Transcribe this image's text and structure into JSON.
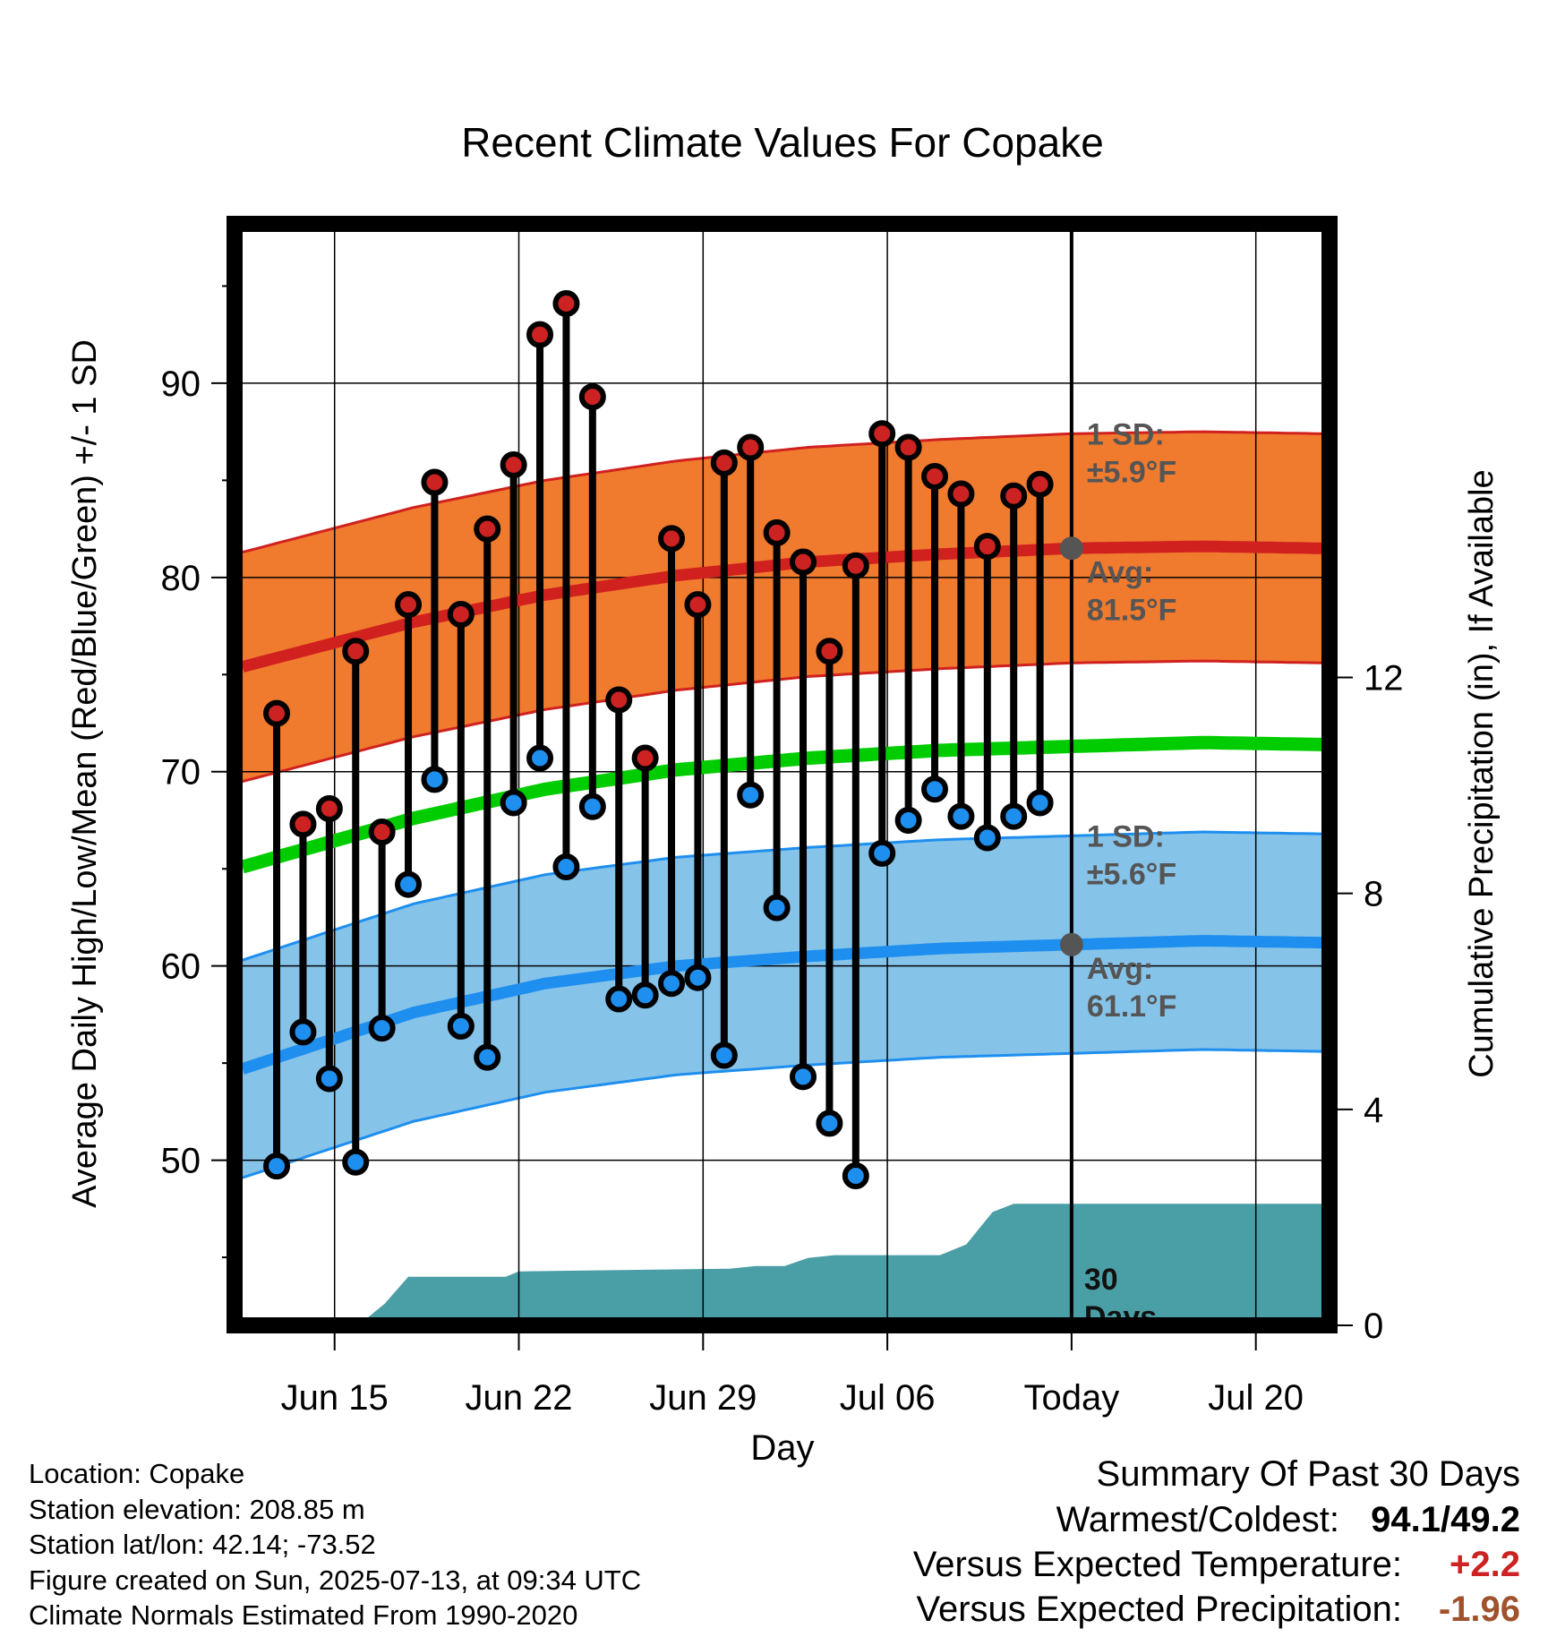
{
  "chart_data": {
    "type": "line",
    "title": "Recent Climate Values For Copake",
    "xlabel": "Day",
    "ylabel": "Average Daily High/Low/Mean (Red/Blue/Green) +/- 1 SD",
    "y2label": "Cumulative Precipitation (in), If Available",
    "ylim": [
      41.5,
      98.2
    ],
    "y_ticks": [
      50,
      60,
      70,
      80,
      90
    ],
    "y2lim": [
      0,
      20.4
    ],
    "y2_ticks": [
      0,
      4,
      8,
      12
    ],
    "xlim": [
      -1.8,
      39.8
    ],
    "x_ticks": [
      {
        "day": 2,
        "label": "Jun 15"
      },
      {
        "day": 9,
        "label": "Jun 22"
      },
      {
        "day": 16,
        "label": "Jun 29"
      },
      {
        "day": 23,
        "label": "Jul 06"
      },
      {
        "day": 30,
        "label": "Today"
      },
      {
        "day": 37,
        "label": "Jul 20"
      }
    ],
    "today_day": 30,
    "grid": true,
    "observed": {
      "days": [
        -0.2,
        0.8,
        1.8,
        2.8,
        3.8,
        4.8,
        5.8,
        6.8,
        7.8,
        8.8,
        9.8,
        10.8,
        11.8,
        12.8,
        13.8,
        14.8,
        15.8,
        16.8,
        17.8,
        18.8,
        19.8,
        20.8,
        21.8,
        22.8,
        23.8,
        24.8,
        25.8,
        26.8,
        27.8,
        28.8
      ],
      "highs": [
        73.0,
        67.3,
        68.1,
        76.2,
        66.9,
        78.6,
        84.9,
        78.1,
        82.5,
        85.8,
        92.5,
        94.1,
        89.3,
        73.7,
        70.7,
        82.0,
        78.6,
        85.9,
        86.7,
        82.3,
        80.8,
        76.2,
        80.6,
        87.4,
        86.7,
        85.2,
        84.3,
        81.6,
        84.2,
        84.8
      ],
      "lows": [
        49.7,
        56.6,
        54.2,
        49.9,
        56.8,
        64.2,
        69.6,
        56.9,
        55.3,
        68.4,
        70.7,
        65.1,
        68.2,
        58.3,
        58.5,
        59.1,
        59.4,
        55.4,
        68.8,
        63.0,
        54.3,
        51.9,
        49.2,
        65.8,
        67.5,
        69.1,
        67.7,
        66.6,
        67.7,
        68.4
      ]
    },
    "normals": {
      "days": [
        -1.5,
        5,
        10,
        15,
        20,
        25,
        30,
        35,
        39.5
      ],
      "high_avg": [
        75.4,
        77.7,
        79.1,
        80.1,
        80.8,
        81.2,
        81.5,
        81.6,
        81.5
      ],
      "low_avg": [
        54.7,
        57.6,
        59.1,
        60.0,
        60.5,
        60.9,
        61.1,
        61.3,
        61.2
      ],
      "mean_avg": [
        65.1,
        67.6,
        69.1,
        70.1,
        70.7,
        71.1,
        71.3,
        71.5,
        71.4
      ],
      "high_sd": 5.9,
      "low_sd": 5.6
    },
    "precipitation": {
      "days": [
        -1.5,
        2.9,
        3.9,
        4.8,
        8.5,
        9.0,
        17.0,
        18.0,
        19.1,
        20.0,
        21.0,
        23.0,
        25.0,
        26.0,
        27.0,
        27.8,
        28.8,
        30.0,
        39.5
      ],
      "cumulative": [
        0.0,
        0.0,
        0.4,
        0.9,
        0.9,
        1.0,
        1.05,
        1.1,
        1.1,
        1.25,
        1.3,
        1.3,
        1.3,
        1.5,
        2.1,
        2.25,
        2.25,
        2.25,
        2.25
      ]
    },
    "annotations": {
      "high_sd_label": [
        "1 SD:",
        "±5.9°F"
      ],
      "high_avg_label": [
        "Avg:",
        "81.5°F"
      ],
      "low_sd_label": [
        "1 SD:",
        "±5.6°F"
      ],
      "low_avg_label": [
        "Avg:",
        "61.1°F"
      ],
      "precip_label": [
        "30",
        "Days"
      ]
    },
    "colors": {
      "high_band": "#f07a2e",
      "high_line": "#d0211f",
      "low_band": "#86c3e9",
      "low_line": "#1e8fef",
      "mean_line": "#00cc00",
      "precip": "#4a9ea5",
      "high_dot": "#cc2222",
      "low_dot": "#1e8fef",
      "annotation": "#555555"
    }
  },
  "footer": {
    "location": "Location: Copake",
    "elevation": "Station elevation: 208.85 m",
    "latlon": "Station lat/lon: 42.14; -73.52",
    "created": "Figure created on Sun, 2025-07-13, at 09:34 UTC",
    "normals": "Climate Normals Estimated From 1990-2020"
  },
  "summary": {
    "title": "Summary Of Past 30 Days",
    "warmest_label": "Warmest/Coldest:",
    "warmest_value": "94.1/49.2",
    "temp_label": "Versus Expected Temperature:",
    "temp_value": "+2.2",
    "temp_color": "#cc2222",
    "precip_label": "Versus Expected Precipitation:",
    "precip_value": "-1.96",
    "precip_color": "#a0522d"
  }
}
